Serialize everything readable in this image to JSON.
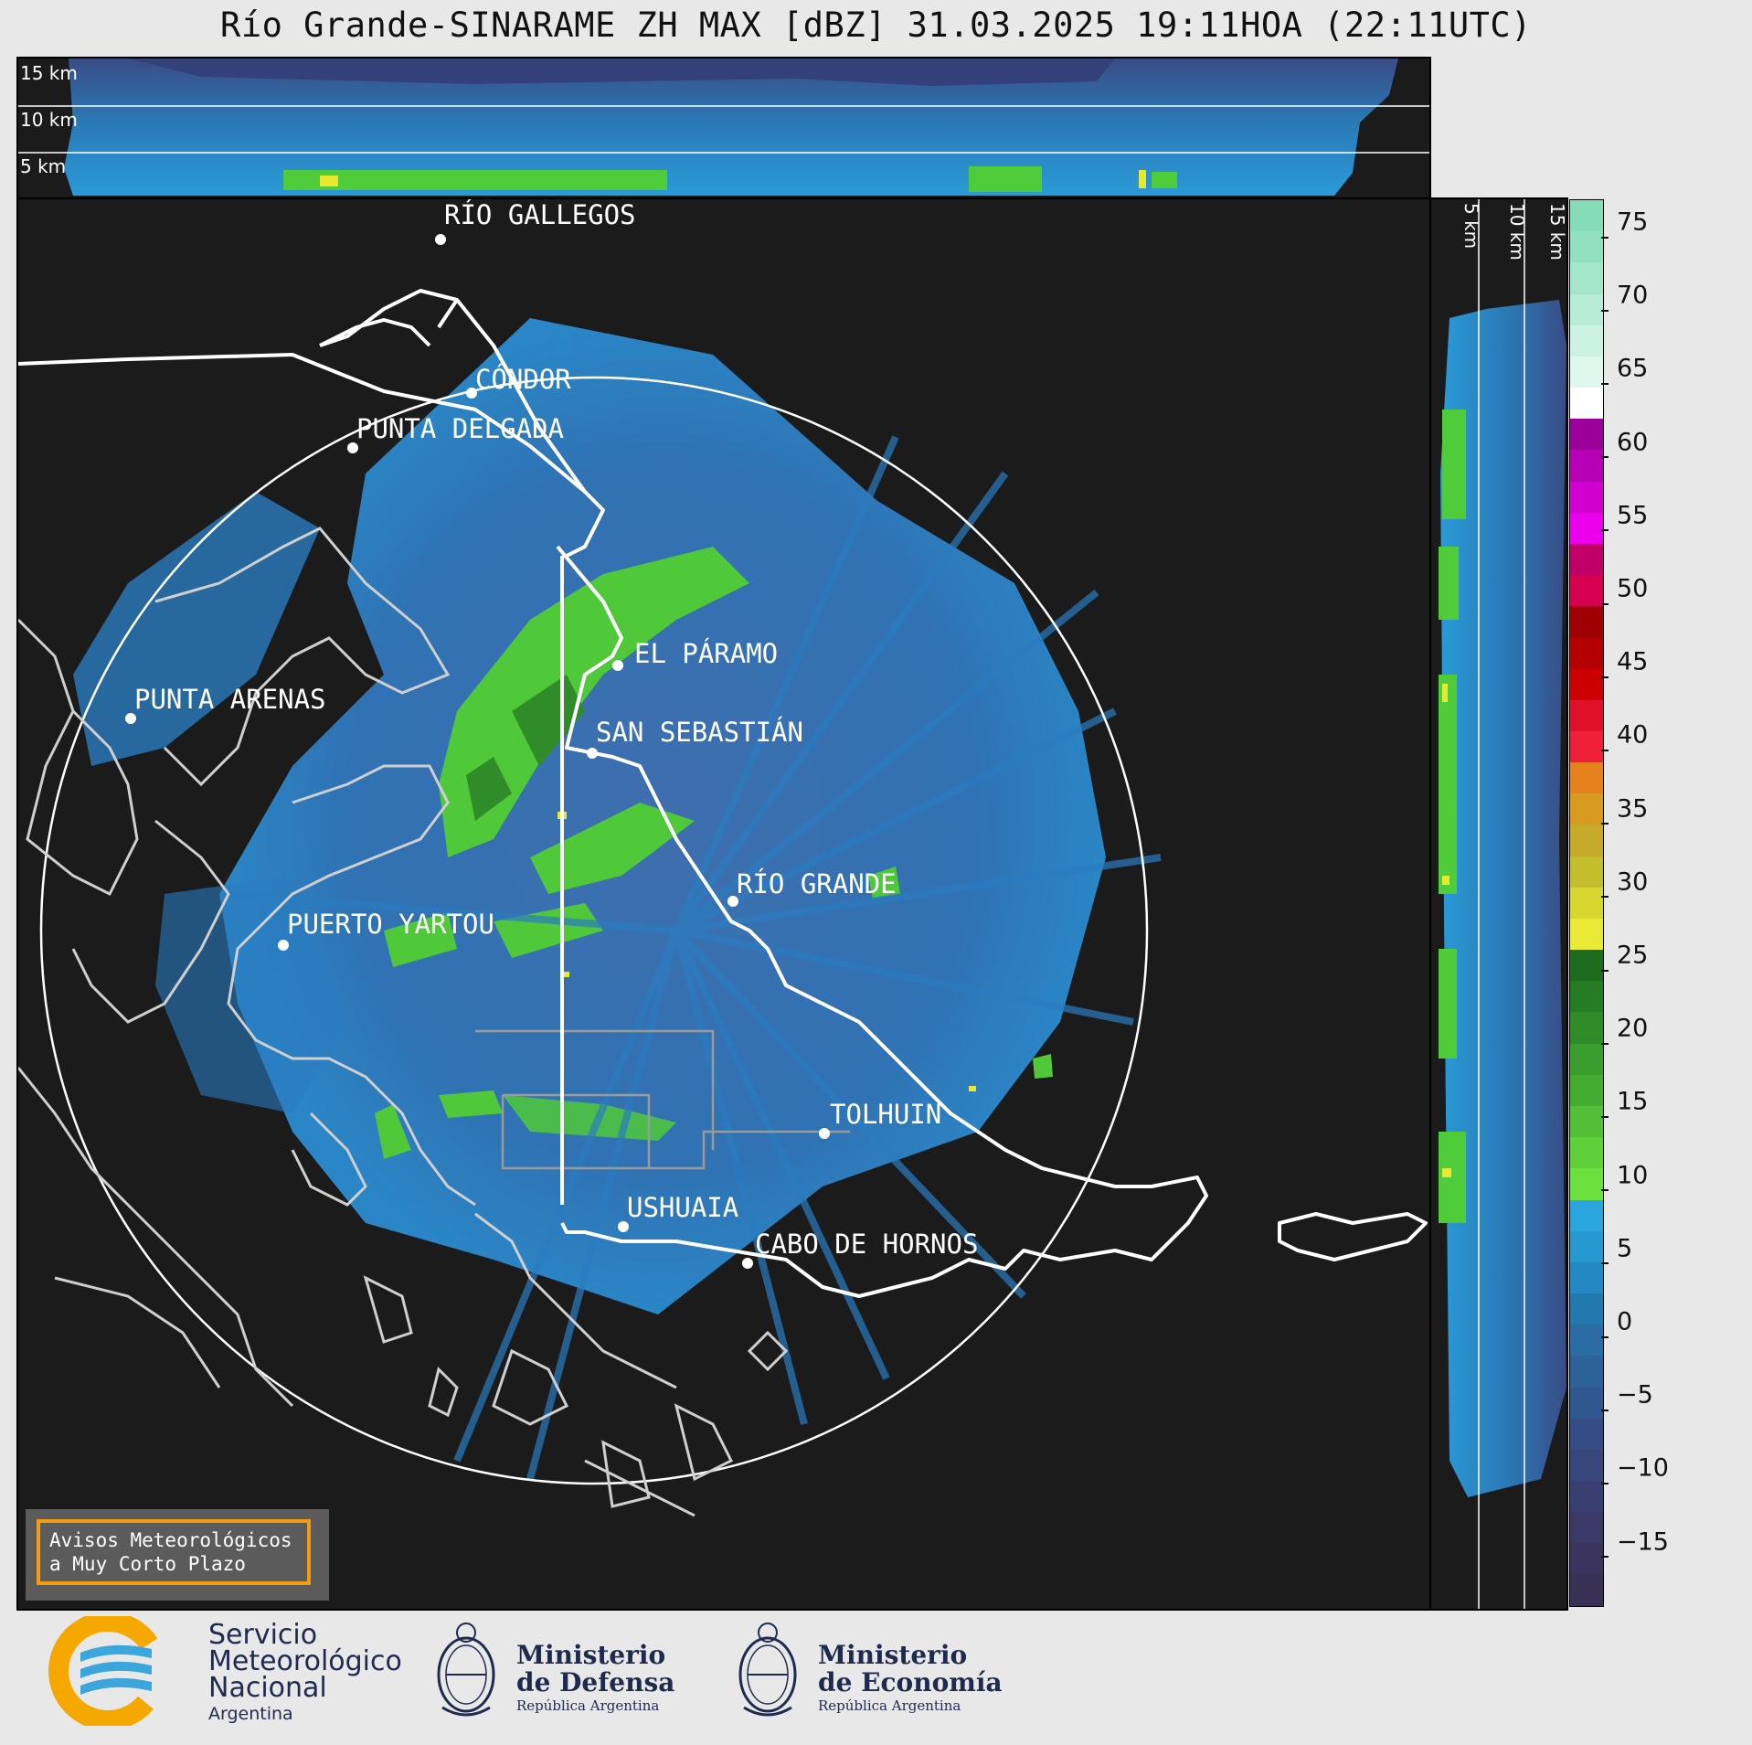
{
  "title": "Río Grande-SINARAME ZH MAX [dBZ] 31.03.2025 19:11HOA (22:11UTC)",
  "top_panel": {
    "altitudes": [
      "15 km",
      "10 km",
      "5 km"
    ]
  },
  "side_panel": {
    "altitudes": [
      "5 km",
      "10 km",
      "15 km"
    ]
  },
  "map": {
    "cities": [
      {
        "name": "RÍO GALLEGOS"
      },
      {
        "name": "CÓNDOR"
      },
      {
        "name": "PUNTA DELGADA"
      },
      {
        "name": "EL PÁRAMO"
      },
      {
        "name": "PUNTA ARENAS"
      },
      {
        "name": "SAN SEBASTIÁN"
      },
      {
        "name": "RÍO GRANDE"
      },
      {
        "name": "PUERTO YARTOU"
      },
      {
        "name": "TOLHUIN"
      },
      {
        "name": "USHUAIA"
      },
      {
        "name": "CABO DE HORNOS"
      }
    ],
    "colors": {
      "background": "#1b1b1b",
      "coast": "#d0d0d0",
      "border": "#ffffff",
      "range_ring": "#ffffff"
    }
  },
  "colorbar": {
    "unit": "dBZ",
    "ticks": [
      "75",
      "70",
      "65",
      "60",
      "55",
      "50",
      "45",
      "40",
      "35",
      "30",
      "25",
      "20",
      "15",
      "10",
      "5",
      "0",
      "−5",
      "−10",
      "−15"
    ],
    "colors_top_to_bottom": [
      "#85dcb6",
      "#92e0bf",
      "#a4e6ca",
      "#b7ecd6",
      "#cbf2e2",
      "#def8ee",
      "#ffffff",
      "#9b009b",
      "#b600b6",
      "#d100d1",
      "#ec00ec",
      "#c10067",
      "#d70050",
      "#9c0000",
      "#b40000",
      "#cc0000",
      "#e00f2a",
      "#f0203a",
      "#e6821e",
      "#d89a20",
      "#c7aa2a",
      "#c3be2c",
      "#d6d630",
      "#eaea35",
      "#1d6c1d",
      "#267c22",
      "#2f8c28",
      "#3a9c2d",
      "#45ac32",
      "#52bf36",
      "#5fd03a",
      "#6ce03e",
      "#2aa6dc",
      "#2898d0",
      "#2389c3",
      "#2279b0",
      "#2a6ca3",
      "#2d6299",
      "#30588f",
      "#344e85",
      "#37467b",
      "#393f71",
      "#3a3967",
      "#3a345e",
      "#393055"
    ]
  },
  "warning_box": {
    "line1": "Avisos Meteorológicos",
    "line2": "a Muy Corto Plazo"
  },
  "logos": {
    "smn": {
      "line1": "Servicio",
      "line2": "Meteorológico",
      "line3": "Nacional",
      "country": "Argentina"
    },
    "defensa": {
      "line1": "Ministerio",
      "line2": "de Defensa",
      "sub": "República Argentina"
    },
    "economia": {
      "line1": "Ministerio",
      "line2": "de Economía",
      "sub": "República Argentina"
    }
  }
}
